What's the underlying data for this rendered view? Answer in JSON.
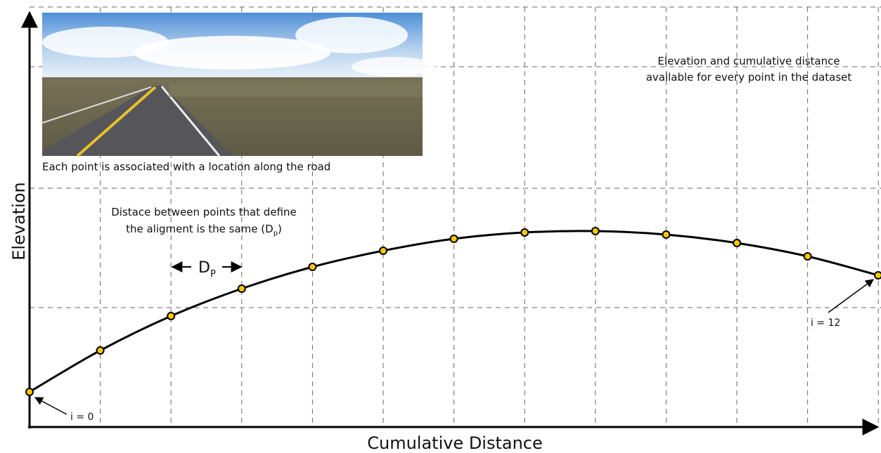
{
  "axes": {
    "y_label": "Elevation",
    "x_label": "Cumulative Distance"
  },
  "photo": {
    "caption": "Each point is associated with a location along the road"
  },
  "dataset_note": {
    "lines": [
      "Elevation and cumulative distance",
      "available for every point in the dataset"
    ]
  },
  "spacing_note": {
    "line1": "Distace between points that define",
    "line2": "the aligment is the same (D",
    "line2_subscript": "p",
    "line2_end": ")"
  },
  "spacing_marker": {
    "label": "D",
    "subscript": "P"
  },
  "point_labels": {
    "first": "i = 0",
    "last": "i = 12"
  }
}
